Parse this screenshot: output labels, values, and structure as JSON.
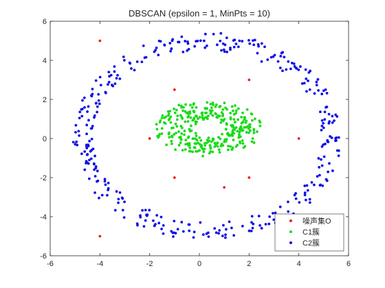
{
  "chart_data": {
    "type": "scatter",
    "title": "DBSCAN  (epsilon = 1, MinPts = 10)",
    "xlabel": "",
    "ylabel": "",
    "xlim": [
      -6,
      6
    ],
    "ylim": [
      -6,
      6
    ],
    "xticks": [
      -6,
      -4,
      -2,
      0,
      2,
      4,
      6
    ],
    "yticks": [
      -6,
      -4,
      -2,
      0,
      2,
      4,
      6
    ],
    "xtick_labels": [
      "-6",
      "-4",
      "-2",
      "0",
      "2",
      "4",
      "6"
    ],
    "ytick_labels": [
      "-6",
      "-4",
      "-2",
      "0",
      "2",
      "4",
      "6"
    ],
    "grid": false,
    "legend_position": "bottom-right",
    "series": [
      {
        "name": "噪声集O",
        "color": "#e32424",
        "points": [
          [
            -4,
            5
          ],
          [
            -1,
            2.5
          ],
          [
            2,
            3
          ],
          [
            -2,
            0
          ],
          [
            4,
            0
          ],
          [
            -1,
            -2
          ],
          [
            1,
            -2.5
          ],
          [
            2,
            -2
          ],
          [
            -4,
            -5
          ]
        ]
      },
      {
        "name": "C1簇",
        "color": "#1adb1a",
        "shape": "ellipse",
        "center": [
          0.4,
          0.5
        ],
        "radius_x": [
          0.6,
          2.2
        ],
        "radius_y": [
          0.5,
          1.4
        ],
        "count": 320
      },
      {
        "name": "C2簇",
        "color": "#1010e8",
        "shape": "ring",
        "center": [
          0.3,
          0.1
        ],
        "radius_x": [
          4.6,
          5.4
        ],
        "radius_y": [
          4.4,
          5.3
        ],
        "count": 360
      }
    ]
  }
}
